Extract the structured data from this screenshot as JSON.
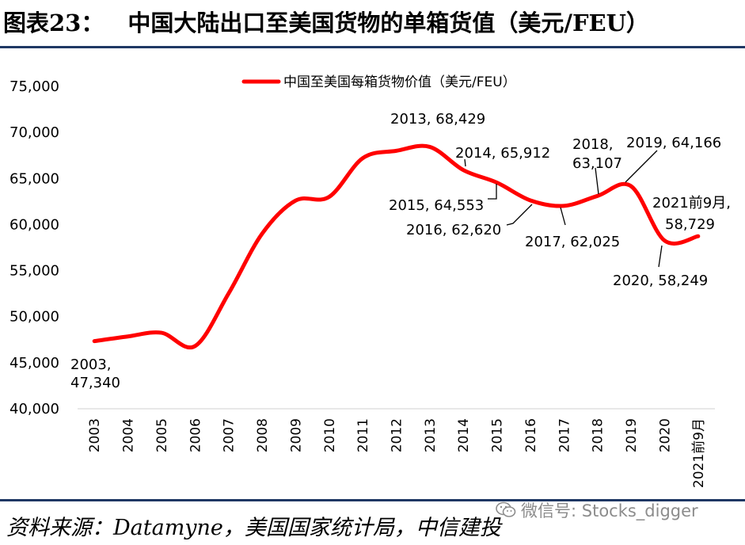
{
  "header": {
    "figure_no": "图表23：",
    "title": "中国大陆出口至美国货物的单箱货值（美元/FEU）"
  },
  "footer": {
    "source": "资料来源：Datamyne，美国国家统计局，中信建投",
    "watermark": "微信号: Stocks_digger",
    "watermark_icon": "wechat-icon"
  },
  "chart_data": {
    "type": "line",
    "title": "",
    "xlabel": "",
    "ylabel": "",
    "categories": [
      "2003",
      "2004",
      "2005",
      "2006",
      "2007",
      "2008",
      "2009",
      "2010",
      "2011",
      "2012",
      "2013",
      "2014",
      "2015",
      "2016",
      "2017",
      "2018",
      "2019",
      "2020",
      "2021前9月"
    ],
    "series": [
      {
        "name": "中国至美国每箱货物价值（美元/FEU）",
        "color": "#ff0000",
        "values": [
          47340,
          47850,
          48250,
          46800,
          52500,
          59000,
          62600,
          63000,
          67200,
          68000,
          68429,
          65912,
          64553,
          62620,
          62025,
          63107,
          64166,
          58249,
          58729
        ]
      }
    ],
    "ylim": [
      40000,
      75000
    ],
    "yticks": [
      "40,000",
      "45,000",
      "50,000",
      "55,000",
      "60,000",
      "65,000",
      "70,000",
      "75,000"
    ],
    "grid": false,
    "legend_position": "top",
    "annotations": [
      {
        "lines": [
          "2003,",
          "47,340"
        ]
      },
      {
        "lines": [
          "2013, 68,429"
        ]
      },
      {
        "lines": [
          "2014, 65,912"
        ]
      },
      {
        "lines": [
          "2015, 64,553"
        ]
      },
      {
        "lines": [
          "2016, 62,620"
        ]
      },
      {
        "lines": [
          "2017, 62,025"
        ]
      },
      {
        "lines": [
          "2018,",
          "63,107"
        ]
      },
      {
        "lines": [
          "2019, 64,166"
        ]
      },
      {
        "lines": [
          "2020, 58,249"
        ]
      },
      {
        "lines": [
          "2021前9月,",
          "58,729"
        ]
      }
    ]
  }
}
